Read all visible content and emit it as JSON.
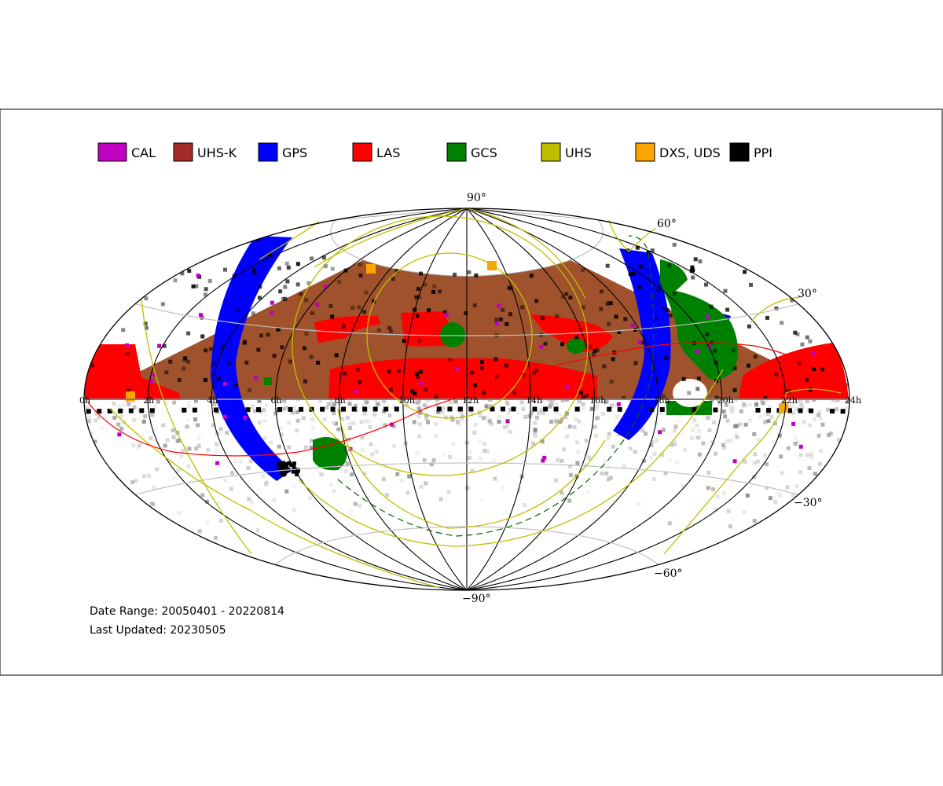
{
  "legend": [
    {
      "label": "CAL",
      "color": "#c000c0"
    },
    {
      "label": "UHS-K",
      "color": "#a52a2a"
    },
    {
      "label": "GPS",
      "color": "#0000ff"
    },
    {
      "label": "LAS",
      "color": "#ff0000"
    },
    {
      "label": "GCS",
      "color": "#008000"
    },
    {
      "label": "UHS",
      "color": "#bfbf00"
    },
    {
      "label": "DXS, UDS",
      "color": "#ffa500"
    },
    {
      "label": "PPI",
      "color": "#000000"
    }
  ],
  "map": {
    "projection": "aitoff",
    "lat_labels": {
      "p90": "90°",
      "p60": "60°",
      "p30": "30°",
      "m30": "−30°",
      "m60": "−60°",
      "m90": "−90°"
    },
    "lon_labels": [
      "0h",
      "2h",
      "4h",
      "6h",
      "8h",
      "10h",
      "12h",
      "14h",
      "16h",
      "18h",
      "20h",
      "22h",
      "24h"
    ],
    "colors": {
      "uhs_k": "#a0522d",
      "las": "#ff0000",
      "gps": "#0000ff",
      "gcs": "#008000",
      "uhs_line": "#bfbf00",
      "ecliptic": "#ff0000",
      "galactic": "#006400"
    }
  },
  "footer": {
    "date_range": "Date Range: 20050401 - 20220814",
    "last_updated": "Last Updated: 20230505"
  }
}
